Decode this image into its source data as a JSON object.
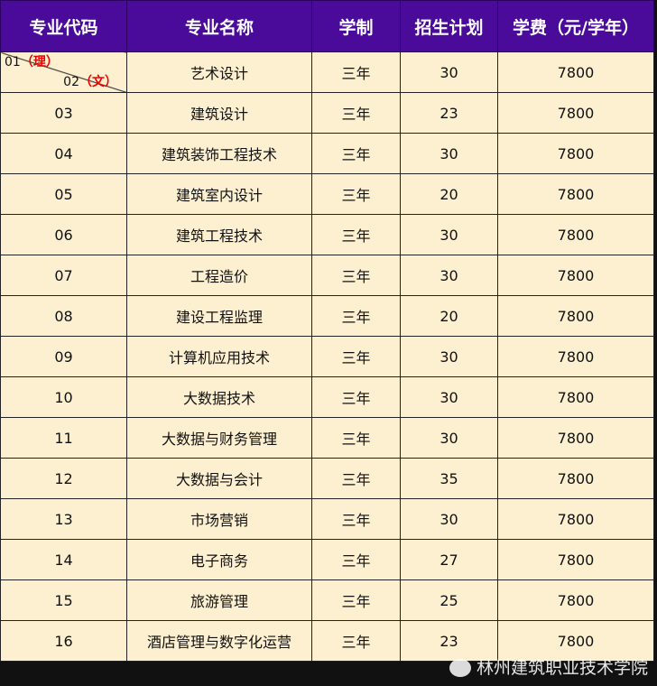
{
  "headers": [
    "专业代码",
    "专业名称",
    "学制",
    "招生计划",
    "学费（元/学年）"
  ],
  "first_row": {
    "code_top": "01",
    "code_top_tag": "（理）",
    "code_bottom": "02",
    "code_bottom_tag": "（文）",
    "name": "艺术设计",
    "duration": "三年",
    "plan": "30",
    "fee": "7800"
  },
  "rows": [
    {
      "code": "03",
      "name": "建筑设计",
      "duration": "三年",
      "plan": "23",
      "fee": "7800"
    },
    {
      "code": "04",
      "name": "建筑装饰工程技术",
      "duration": "三年",
      "plan": "30",
      "fee": "7800"
    },
    {
      "code": "05",
      "name": "建筑室内设计",
      "duration": "三年",
      "plan": "20",
      "fee": "7800"
    },
    {
      "code": "06",
      "name": "建筑工程技术",
      "duration": "三年",
      "plan": "30",
      "fee": "7800"
    },
    {
      "code": "07",
      "name": "工程造价",
      "duration": "三年",
      "plan": "30",
      "fee": "7800"
    },
    {
      "code": "08",
      "name": "建设工程监理",
      "duration": "三年",
      "plan": "20",
      "fee": "7800"
    },
    {
      "code": "09",
      "name": "计算机应用技术",
      "duration": "三年",
      "plan": "30",
      "fee": "7800"
    },
    {
      "code": "10",
      "name": "大数据技术",
      "duration": "三年",
      "plan": "30",
      "fee": "7800"
    },
    {
      "code": "11",
      "name": "大数据与财务管理",
      "duration": "三年",
      "plan": "30",
      "fee": "7800"
    },
    {
      "code": "12",
      "name": "大数据与会计",
      "duration": "三年",
      "plan": "35",
      "fee": "7800"
    },
    {
      "code": "13",
      "name": "市场营销",
      "duration": "三年",
      "plan": "30",
      "fee": "7800"
    },
    {
      "code": "14",
      "name": "电子商务",
      "duration": "三年",
      "plan": "27",
      "fee": "7800"
    },
    {
      "code": "15",
      "name": "旅游管理",
      "duration": "三年",
      "plan": "25",
      "fee": "7800"
    },
    {
      "code": "16",
      "name": "酒店管理与数字化运营",
      "duration": "三年",
      "plan": "23",
      "fee": "7800"
    }
  ],
  "watermark": {
    "text": "林州建筑职业技术学院",
    "icon": "wechat-icon"
  }
}
